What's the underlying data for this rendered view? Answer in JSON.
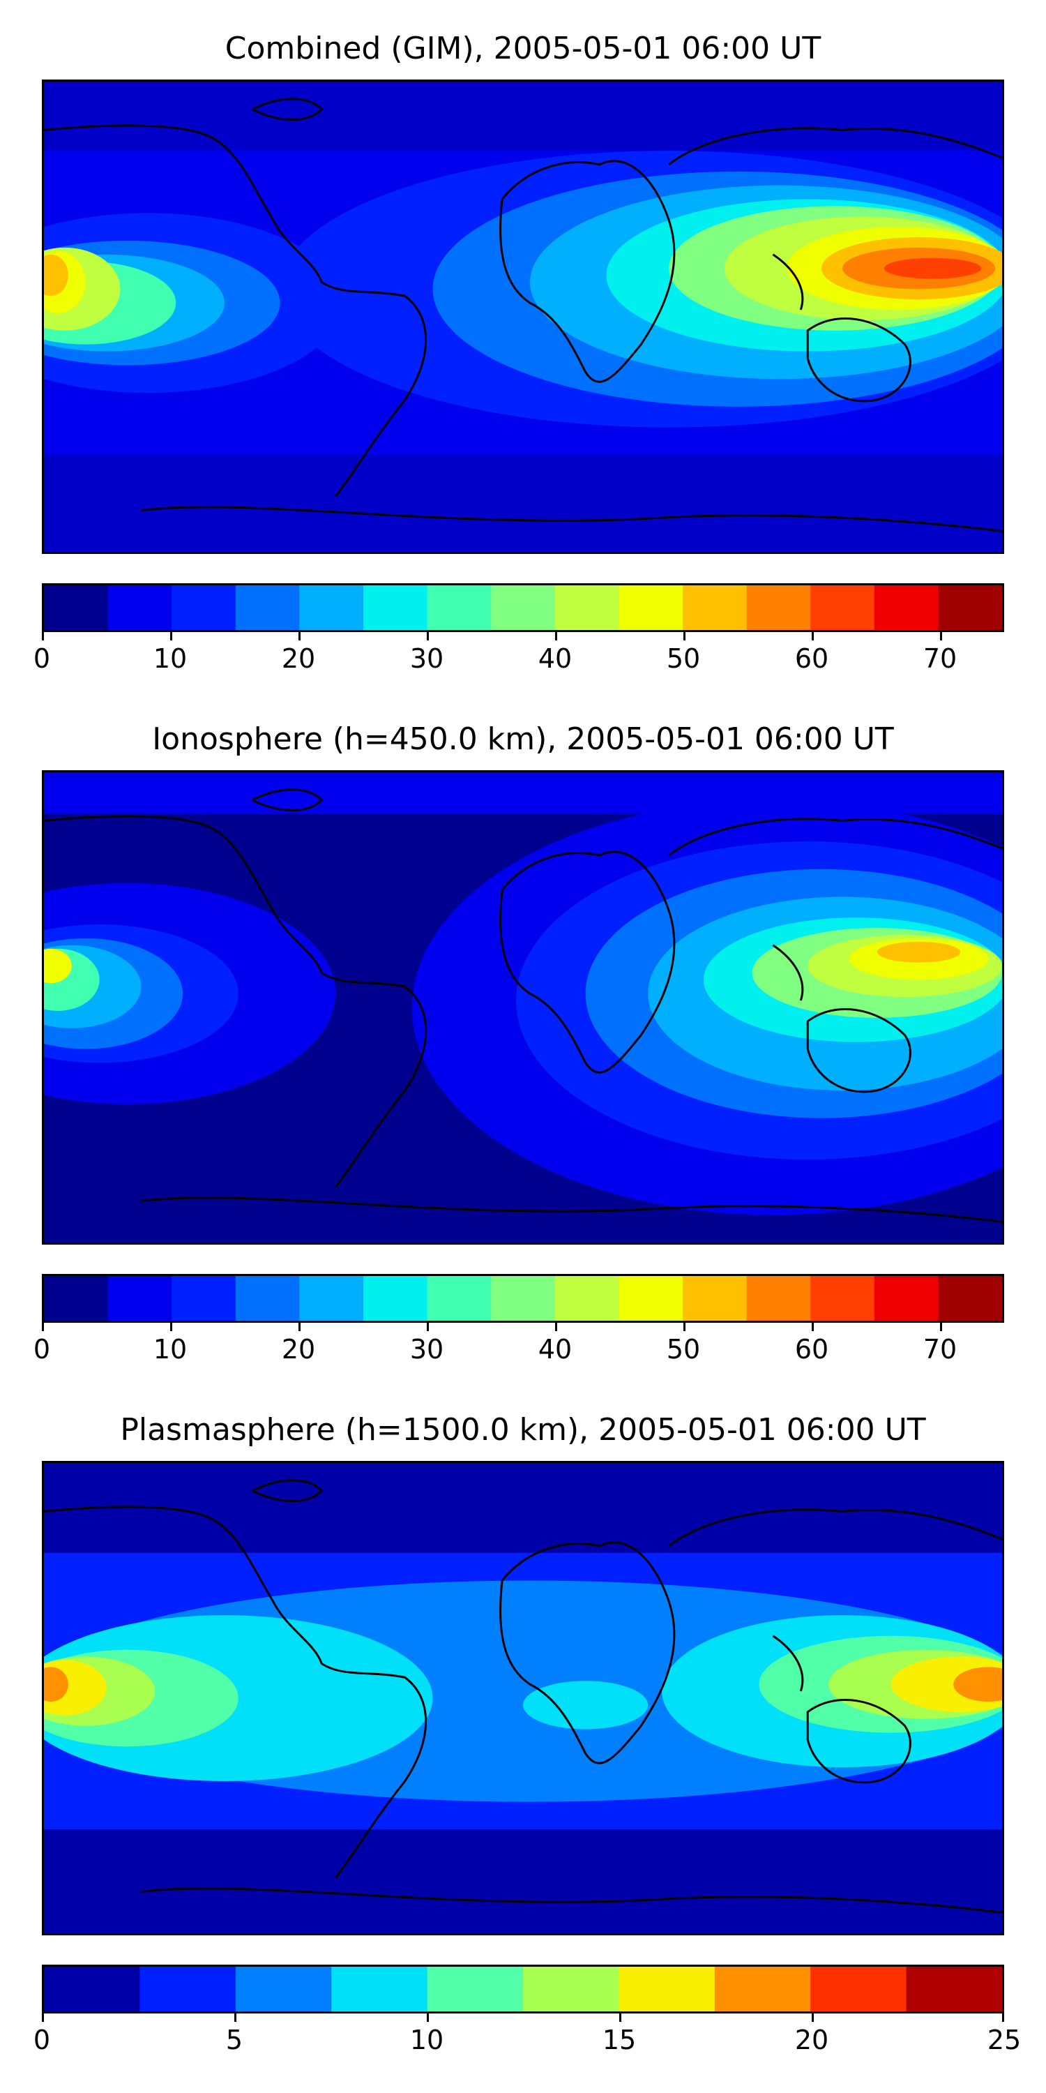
{
  "panels": [
    {
      "title": "Combined (GIM), 2005-05-01 06:00 UT",
      "colorbar": {
        "colors": [
          "#00008f",
          "#0000ef",
          "#0020ff",
          "#0070ff",
          "#00b0ff",
          "#00f0f0",
          "#40ffb0",
          "#80ff80",
          "#c0ff40",
          "#f0ff00",
          "#ffc000",
          "#ff8000",
          "#ff4000",
          "#f00000",
          "#a00000"
        ],
        "ticks": [
          0,
          10,
          20,
          30,
          40,
          50,
          60,
          70
        ],
        "range": [
          0,
          75
        ]
      }
    },
    {
      "title": "Ionosphere  (h=450.0 km), 2005-05-01 06:00 UT",
      "colorbar": {
        "colors": [
          "#00008f",
          "#0000ef",
          "#0020ff",
          "#0070ff",
          "#00b0ff",
          "#00f0f0",
          "#40ffb0",
          "#80ff80",
          "#c0ff40",
          "#f0ff00",
          "#ffc000",
          "#ff8000",
          "#ff4000",
          "#f00000",
          "#a00000"
        ],
        "ticks": [
          0,
          10,
          20,
          30,
          40,
          50,
          60,
          70
        ],
        "range": [
          0,
          75
        ]
      }
    },
    {
      "title": "Plasmasphere (h=1500.0 km), 2005-05-01 06:00 UT",
      "colorbar": {
        "colors": [
          "#0000a8",
          "#0020ff",
          "#0080ff",
          "#00e0f8",
          "#50ffa8",
          "#a8ff50",
          "#f8f000",
          "#ff9000",
          "#ff3000",
          "#b00000"
        ],
        "ticks": [
          0,
          5,
          10,
          15,
          20,
          25
        ],
        "range": [
          0,
          25
        ]
      }
    }
  ]
}
